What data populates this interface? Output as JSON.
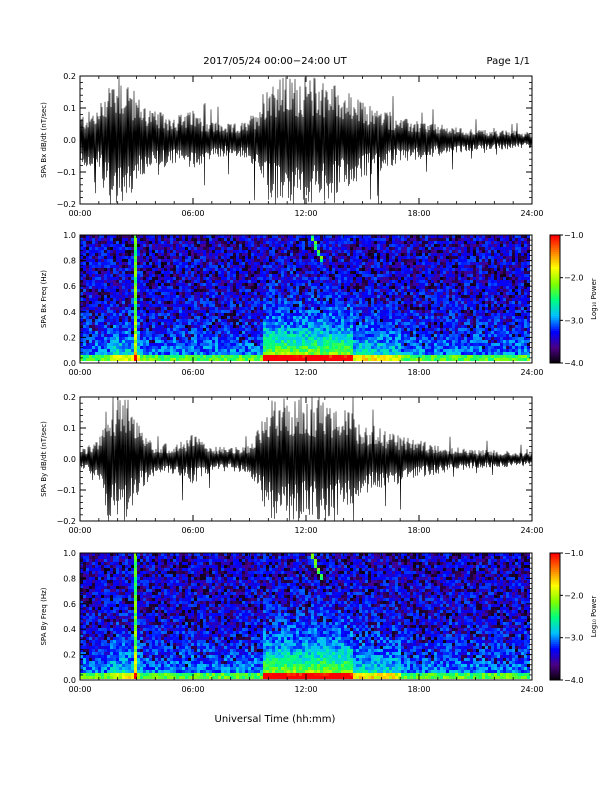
{
  "header": {
    "title": "2017/05/24  00:00−24:00 UT",
    "page": "Page 1/1"
  },
  "footer": {
    "xlabel": "Universal Time (hh:mm)"
  },
  "colorbar": {
    "label": "Log₁₀ Power",
    "tick_labels": [
      "−1.0",
      "−2.0",
      "−3.0",
      "−4.0"
    ],
    "range": [
      -4.0,
      -1.0
    ],
    "colors": [
      "#000000",
      "#4b0082",
      "#0000ff",
      "#00bfff",
      "#00ff7f",
      "#7fff00",
      "#ffff00",
      "#ff7f00",
      "#ff0000"
    ]
  },
  "chart_data": [
    {
      "type": "line",
      "ylabel": "SPA Bx dB/dt (nT/sec)",
      "xlim": [
        "00:00",
        "24:00"
      ],
      "ylim": [
        -0.2,
        0.2
      ],
      "x_tick_labels": [
        "00:00",
        "06:00",
        "12:00",
        "18:00",
        "24:00"
      ],
      "y_tick_labels": [
        "0.2",
        "0.1",
        "0.0",
        "−0.1",
        "−0.2"
      ],
      "series": [
        {
          "x_hours": [
            0,
            1,
            1.5,
            2,
            2.5,
            3,
            4,
            5,
            6,
            7,
            8,
            9,
            9.5,
            10,
            11,
            12,
            13,
            14,
            15,
            16,
            17,
            18,
            19,
            20,
            21,
            22,
            23,
            24
          ],
          "envelope": [
            0.08,
            0.1,
            0.2,
            0.2,
            0.2,
            0.14,
            0.09,
            0.08,
            0.09,
            0.06,
            0.05,
            0.06,
            0.12,
            0.2,
            0.2,
            0.2,
            0.2,
            0.16,
            0.12,
            0.1,
            0.07,
            0.06,
            0.05,
            0.04,
            0.035,
            0.03,
            0.03,
            0.025
          ]
        }
      ]
    },
    {
      "type": "heatmap",
      "ylabel": "SPA Bx Freq (Hz)",
      "xlim": [
        "00:00",
        "24:00"
      ],
      "ylim": [
        0.0,
        1.0
      ],
      "x_tick_labels": [
        "00:00",
        "06:00",
        "12:00",
        "18:00",
        "24:00"
      ],
      "y_tick_labels": [
        "1.0",
        "0.8",
        "0.6",
        "0.4",
        "0.2",
        "0.0"
      ]
    },
    {
      "type": "line",
      "ylabel": "SPA By dB/dt (nT/sec)",
      "xlim": [
        "00:00",
        "24:00"
      ],
      "ylim": [
        -0.2,
        0.2
      ],
      "x_tick_labels": [
        "00:00",
        "06:00",
        "12:00",
        "18:00",
        "24:00"
      ],
      "y_tick_labels": [
        "0.2",
        "0.1",
        "0.0",
        "−0.1",
        "−0.2"
      ],
      "series": [
        {
          "x_hours": [
            0,
            1,
            1.5,
            2,
            2.5,
            3,
            4,
            5,
            6,
            7,
            8,
            9,
            9.5,
            10,
            11,
            12,
            13,
            14,
            15,
            16,
            17,
            18,
            19,
            20,
            21,
            22,
            23,
            24
          ],
          "envelope": [
            0.03,
            0.06,
            0.2,
            0.2,
            0.2,
            0.12,
            0.05,
            0.05,
            0.08,
            0.04,
            0.04,
            0.05,
            0.1,
            0.2,
            0.2,
            0.2,
            0.2,
            0.18,
            0.12,
            0.1,
            0.08,
            0.06,
            0.05,
            0.04,
            0.03,
            0.03,
            0.025,
            0.02
          ]
        }
      ]
    },
    {
      "type": "heatmap",
      "ylabel": "SPA By Freq (Hz)",
      "xlim": [
        "00:00",
        "24:00"
      ],
      "ylim": [
        0.0,
        1.0
      ],
      "x_tick_labels": [
        "00:00",
        "06:00",
        "12:00",
        "18:00",
        "24:00"
      ],
      "y_tick_labels": [
        "1.0",
        "0.8",
        "0.6",
        "0.4",
        "0.2",
        "0.0"
      ]
    }
  ]
}
